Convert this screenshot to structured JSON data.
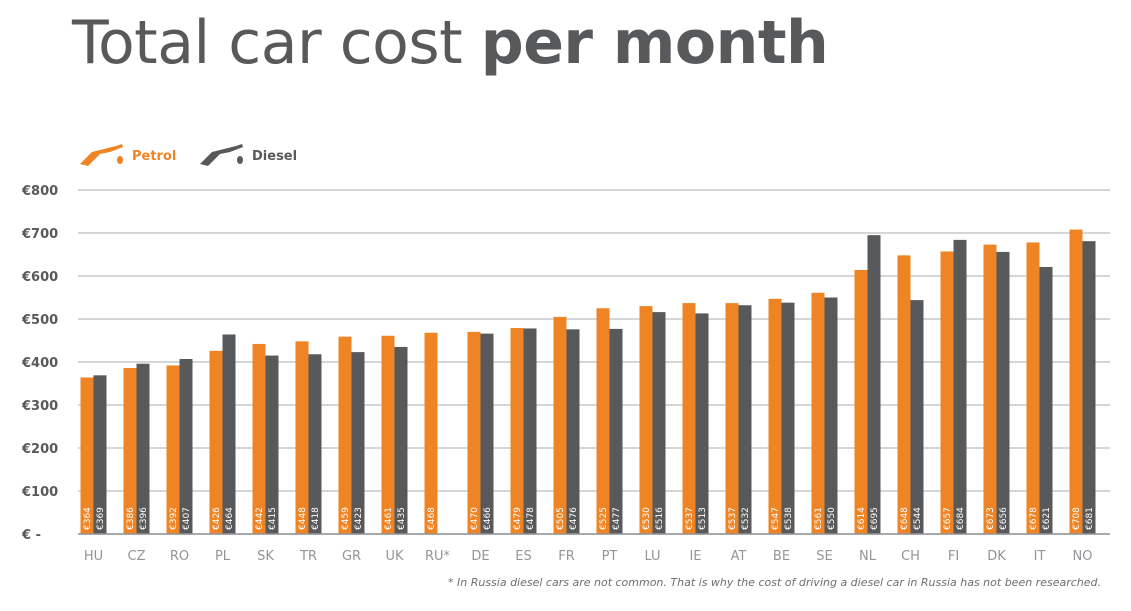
{
  "title": {
    "regular": "Total car cost ",
    "bold": "per month"
  },
  "legend": [
    {
      "name": "Petrol",
      "color": "#ee8423",
      "icon": "fuel-nozzle-icon"
    },
    {
      "name": "Diesel",
      "color": "#58595b",
      "icon": "fuel-nozzle-icon"
    }
  ],
  "footnote": "* In Russia diesel cars are not common. That is why the cost of driving a diesel car in Russia has not been researched.",
  "chart_data": {
    "type": "bar",
    "title": "Total car cost per month",
    "xlabel": "",
    "ylabel": "",
    "ylim": [
      0,
      800
    ],
    "yticks": [
      0,
      100,
      200,
      300,
      400,
      500,
      600,
      700,
      800
    ],
    "ytick_labels": [
      "€ -",
      "€100",
      "€200",
      "€300",
      "€400",
      "€500",
      "€600",
      "€700",
      "€800"
    ],
    "grid": true,
    "legend_position": "top-left",
    "categories": [
      "HU",
      "CZ",
      "RO",
      "PL",
      "SK",
      "TR",
      "GR",
      "UK",
      "RU*",
      "DE",
      "ES",
      "FR",
      "PT",
      "LU",
      "IE",
      "AT",
      "BE",
      "SE",
      "NL",
      "CH",
      "FI",
      "DK",
      "IT",
      "NO"
    ],
    "series": [
      {
        "name": "Petrol",
        "color": "#ee8423",
        "values": [
          364,
          386,
          392,
          426,
          442,
          448,
          459,
          461,
          468,
          470,
          479,
          505,
          525,
          530,
          537,
          537,
          547,
          561,
          614,
          648,
          657,
          673,
          678,
          708
        ],
        "labels": [
          "€364",
          "€386",
          "€392",
          "€426",
          "€442",
          "€448",
          "€459",
          "€461",
          "€468",
          "€470",
          "€479",
          "€505",
          "€525",
          "€530",
          "€537",
          "€537",
          "€547",
          "€561",
          "€614",
          "€648",
          "€657",
          "€673",
          "€678",
          "€708"
        ]
      },
      {
        "name": "Diesel",
        "color": "#58595b",
        "values": [
          369,
          396,
          407,
          464,
          415,
          418,
          423,
          435,
          null,
          466,
          478,
          476,
          477,
          516,
          513,
          532,
          538,
          550,
          695,
          544,
          684,
          656,
          621,
          681
        ],
        "labels": [
          "€369",
          "€396",
          "€407",
          "€464",
          "€415",
          "€418",
          "€423",
          "€435",
          "",
          "€466",
          "€478",
          "€476",
          "€477",
          "€516",
          "€513",
          "€532",
          "€538",
          "€550",
          "€695",
          "€544",
          "€684",
          "€656",
          "€621",
          "€681"
        ]
      }
    ]
  }
}
